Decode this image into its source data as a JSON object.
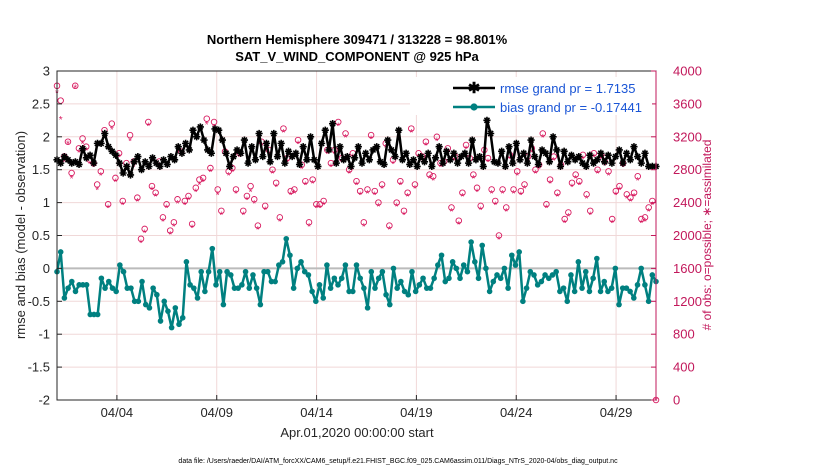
{
  "chart_data": {
    "type": "line",
    "title": "Northern Hemisphere 309471 / 313228 = 98.801%",
    "subtitle": "SAT_V_WIND_COMPONENT @ 925 hPa",
    "xlabel": "Apr.01,2020 00:00:00 start",
    "ylabel": "rmse and bias (model - observation)",
    "y2label": "# of obs: o=possible; ∗=assimilated",
    "footer": "data file: /Users/raeder/DAI/ATM_forcXX/CAM6_setup/f.e21.FHIST_BGC.f09_025.CAM6assim.011/Diags_NTrS_2020-04/obs_diag_output.nc",
    "x_tick_labels": [
      "04/04",
      "04/09",
      "04/14",
      "04/19",
      "04/24",
      "04/29"
    ],
    "x_tick_days": [
      4,
      9,
      14,
      19,
      24,
      29
    ],
    "xlim": [
      1.0,
      31.0
    ],
    "ylim": [
      -2,
      3
    ],
    "y_ticks": [
      "-2",
      "-1.5",
      "-1",
      "-0.5",
      "0",
      "0.5",
      "1",
      "1.5",
      "2",
      "2.5",
      "3"
    ],
    "y2lim": [
      0,
      4000
    ],
    "y2_ticks": [
      "0",
      "400",
      "800",
      "1200",
      "1600",
      "2000",
      "2400",
      "2800",
      "3200",
      "3600",
      "4000"
    ],
    "series": [
      {
        "name": "rmse grand pr = 1.7135",
        "color": "#000000",
        "marker": "star",
        "values": [
          1.65,
          1.6,
          1.7,
          1.65,
          1.6,
          1.62,
          1.58,
          1.82,
          1.68,
          1.72,
          1.6,
          1.9,
          1.9,
          2.05,
          1.85,
          1.78,
          1.72,
          1.6,
          1.45,
          1.55,
          1.42,
          1.62,
          1.7,
          1.5,
          1.62,
          1.55,
          1.68,
          1.6,
          1.55,
          1.65,
          1.58,
          1.7,
          1.65,
          1.85,
          1.75,
          1.9,
          1.8,
          2.1,
          2.0,
          2.15,
          1.95,
          1.8,
          1.75,
          2.12,
          2.1,
          1.95,
          1.75,
          1.55,
          1.7,
          1.8,
          1.75,
          1.95,
          1.6,
          1.85,
          1.65,
          2.05,
          1.7,
          1.9,
          1.62,
          2.05,
          1.7,
          1.9,
          1.6,
          1.78,
          1.7,
          1.75,
          1.58,
          1.85,
          1.65,
          2.0,
          1.65,
          1.55,
          1.9,
          2.1,
          1.8,
          2.2,
          1.6,
          1.85,
          1.65,
          1.7,
          1.55,
          1.68,
          1.85,
          1.6,
          1.75,
          1.65,
          1.8,
          1.85,
          1.62,
          1.58,
          1.95,
          1.8,
          1.7,
          2.1,
          1.65,
          1.75,
          1.58,
          1.65,
          1.55,
          1.7,
          1.62,
          1.75,
          1.55,
          1.68,
          1.85,
          1.6,
          1.78,
          1.65,
          1.75,
          1.6,
          1.7,
          1.75,
          1.6,
          1.95,
          1.65,
          1.7,
          1.55,
          2.25,
          2.05,
          1.62,
          1.6,
          1.78,
          1.55,
          1.85,
          1.6,
          1.9,
          1.65,
          1.75,
          1.6,
          1.95,
          1.7,
          1.58,
          1.8,
          1.75,
          1.62,
          2.0,
          1.8,
          1.55,
          1.78,
          1.62,
          1.72,
          1.65,
          1.7,
          1.6,
          1.55,
          1.72,
          1.6,
          1.65,
          1.75,
          1.62,
          1.72,
          1.6,
          1.7,
          1.8,
          1.6,
          1.75,
          1.65,
          1.85,
          1.7,
          1.6,
          1.75,
          1.55,
          1.55,
          1.55
        ]
      },
      {
        "name": "bias grand pr = -0.17441",
        "color": "#008080",
        "marker": "circle",
        "values": [
          -0.05,
          0.25,
          -0.45,
          -0.3,
          -0.2,
          -0.35,
          -0.25,
          -0.25,
          -0.25,
          -0.7,
          -0.7,
          -0.7,
          -0.15,
          -0.3,
          -0.2,
          -0.3,
          -0.35,
          0.05,
          -0.05,
          -0.3,
          -0.3,
          -0.5,
          -0.5,
          -0.2,
          -0.55,
          -0.6,
          -0.3,
          -0.4,
          -0.8,
          -0.5,
          -0.65,
          -0.9,
          -0.6,
          -0.85,
          -0.75,
          0.1,
          -0.25,
          -0.3,
          -0.45,
          -0.05,
          -0.35,
          -0.05,
          0.3,
          -0.25,
          -0.05,
          -0.55,
          -0.05,
          -0.1,
          -0.3,
          -0.3,
          -0.25,
          -0.05,
          -0.3,
          -0.1,
          -0.3,
          -0.55,
          -0.05,
          -0.05,
          -0.2,
          -0.2,
          0.05,
          0.1,
          0.45,
          0.2,
          -0.3,
          0.0,
          0.1,
          -0.05,
          -0.1,
          -0.35,
          -0.5,
          -0.25,
          -0.45,
          0.05,
          -0.3,
          -0.15,
          -0.25,
          -0.15,
          0.05,
          -0.35,
          -0.35,
          0.05,
          -0.15,
          -0.3,
          -0.6,
          -0.05,
          -0.3,
          -0.15,
          -0.05,
          -0.4,
          -0.55,
          0.0,
          -0.3,
          -0.2,
          -0.35,
          -0.4,
          -0.05,
          -0.35,
          -0.25,
          -0.15,
          -0.3,
          -0.3,
          -0.15,
          0.05,
          0.2,
          -0.2,
          -0.15,
          0.1,
          0.0,
          -0.15,
          0.05,
          -0.05,
          0.4,
          0.1,
          -0.15,
          0.35,
          0.0,
          -0.35,
          -0.2,
          -0.1,
          -0.15,
          0.0,
          -0.3,
          0.2,
          0.05,
          0.25,
          -0.5,
          -0.3,
          -0.05,
          -0.1,
          -0.25,
          -0.2,
          -0.1,
          -0.15,
          -0.1,
          -0.05,
          -0.35,
          -0.3,
          -0.5,
          -0.1,
          -0.35,
          0.1,
          -0.3,
          -0.05,
          -0.35,
          -0.15,
          0.15,
          -0.35,
          -0.2,
          -0.35,
          -0.3,
          0.0,
          -0.55,
          -0.3,
          -0.3,
          -0.35,
          -0.45,
          -0.25,
          0.0,
          -0.25,
          -0.5,
          -0.1,
          -0.2
        ]
      }
    ],
    "obs_possible": [
      3820,
      3640,
      2960,
      3140,
      2760,
      3820,
      3060,
      3180,
      3080,
      2920,
      2880,
      2620,
      2780,
      3280,
      2380,
      3360,
      2700,
      3000,
      2420,
      2880,
      3220,
      2900,
      2460,
      1960,
      2080,
      3380,
      2600,
      2520,
      2900,
      2220,
      2380,
      2060,
      2160,
      2440,
      3020,
      2420,
      2480,
      2140,
      2580,
      2680,
      2700,
      3420,
      2820,
      3380,
      2560,
      2300,
      3020,
      2780,
      2820,
      2560,
      3000,
      2300,
      2480,
      2600,
      2440,
      2120,
      3140,
      2360,
      3040,
      2800,
      2640,
      2220,
      3300,
      2940,
      2540,
      2560,
      3160,
      2860,
      2660,
      2160,
      2680,
      2380,
      2380,
      2420,
      3040,
      2880,
      3040,
      3380,
      2940,
      3240,
      2800,
      3000,
      2660,
      2540,
      2160,
      2560,
      3220,
      2540,
      2400,
      2620,
      3120,
      2120,
      2920,
      2400,
      2660,
      2300,
      2520,
      3300,
      2620,
      3000,
      2960,
      3140,
      2740,
      2720,
      3200,
      2880,
      2900,
      3060,
      2340,
      2960,
      2180,
      2520,
      3100,
      2940,
      2740,
      2580,
      2360,
      3040,
      2940,
      2560,
      2420,
      2000,
      2560,
      2340,
      2980,
      2560,
      2780,
      2540,
      2620,
      2960,
      3060,
      2800,
      2860,
      3240,
      2380,
      2680,
      2960,
      2520,
      2860,
      2200,
      2280,
      2640,
      2740,
      2660,
      2980,
      2500,
      2300,
      3000,
      2800,
      2980,
      2900,
      2780,
      2200,
      2540,
      2600,
      2880,
      2500,
      2460,
      2520,
      2720,
      2200,
      2220,
      2340,
      2420,
      0
    ],
    "obs_assimilated": [
      3740,
      3420,
      2900,
      3120,
      2700,
      3800,
      3020,
      3120,
      3040,
      2880,
      2840,
      2560,
      2740,
      3240,
      2340,
      3300,
      2660,
      2960,
      2380,
      2840,
      3160,
      2840,
      2420,
      1920,
      2040,
      3340,
      2560,
      2480,
      2860,
      2180,
      2340,
      2020,
      2120,
      2400,
      2980,
      2380,
      2440,
      2100,
      2540,
      2620,
      2660,
      3360,
      2780,
      3320,
      2500,
      2260,
      2980,
      2740,
      2780,
      2520,
      2960,
      2260,
      2440,
      2540,
      2400,
      2080,
      3100,
      2320,
      3000,
      2760,
      2600,
      2180,
      3260,
      2900,
      2500,
      2520,
      3120,
      2820,
      2620,
      2120,
      2640,
      2340,
      2340,
      2380,
      3000,
      2840,
      3000,
      3340,
      2900,
      3200,
      2760,
      2960,
      2620,
      2500,
      2120,
      2520,
      3180,
      2500,
      2360,
      2580,
      3080,
      2080,
      2880,
      2360,
      2620,
      2260,
      2480,
      3260,
      2580,
      2960,
      2920,
      3100,
      2700,
      2680,
      3160,
      2840,
      2860,
      3020,
      2300,
      2920,
      2140,
      2480,
      3060,
      2900,
      2700,
      2540,
      2320,
      3000,
      2900,
      2520,
      2380,
      1960,
      2520,
      2300,
      2940,
      2520,
      2740,
      2500,
      2580,
      2920,
      3020,
      2760,
      2820,
      3200,
      2340,
      2640,
      2920,
      2480,
      2820,
      2160,
      2240,
      2600,
      2700,
      2620,
      2940,
      2460,
      2260,
      2960,
      2760,
      2940,
      2860,
      2740,
      2160,
      2500,
      2560,
      2840,
      2460,
      2420,
      2480,
      2680,
      2160,
      2180,
      2300,
      2380,
      0
    ]
  }
}
